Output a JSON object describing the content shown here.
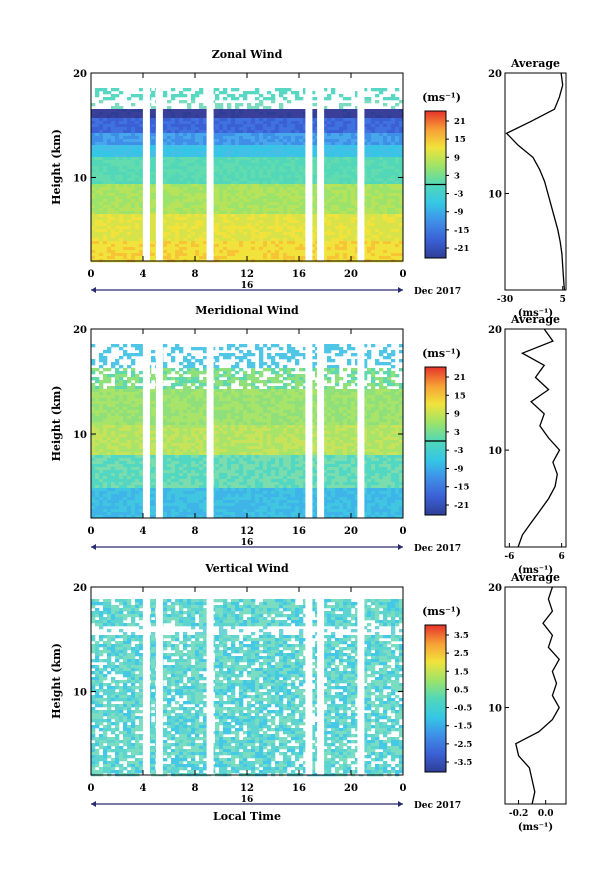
{
  "chart_data": [
    {
      "type": "heatmap",
      "id": "zonal",
      "title": "Zonal Wind",
      "ylabel": "Height (km)",
      "xticks": [
        "0",
        "4",
        "8",
        "12",
        "16",
        "20",
        "0"
      ],
      "yticks": [
        "10",
        "20"
      ],
      "ylim": [
        2,
        20
      ],
      "xlim": [
        0,
        24
      ],
      "date_marker": "16",
      "date_label": "Dec 2017",
      "colorbar": {
        "unit": "(ms⁻¹)",
        "ticks": [
          "21",
          "15",
          "9",
          "3",
          "-3",
          "-9",
          "-15",
          "-21"
        ]
      },
      "gap_hours": [
        4.3,
        5.3,
        9.2,
        16.8,
        17.7,
        20.8
      ],
      "profile": {
        "title": "Average",
        "xticks": [
          "-30",
          "5"
        ],
        "xlim": [
          -30,
          7
        ],
        "xlabel": "(ms⁻¹)",
        "yticks": [
          "10",
          "20"
        ],
        "height_km": [
          2,
          3,
          4,
          5,
          6,
          7,
          8,
          9,
          10,
          11,
          12,
          13,
          14,
          15,
          16,
          17,
          18,
          19,
          20
        ],
        "values": [
          6,
          5.5,
          5,
          4.5,
          3.5,
          2,
          0,
          -2,
          -4,
          -6,
          -9,
          -13,
          -22,
          -29,
          -14,
          0,
          3,
          5,
          4
        ]
      }
    },
    {
      "type": "heatmap",
      "id": "meridional",
      "title": "Meridional Wind",
      "ylabel": "Height (km)",
      "xticks": [
        "0",
        "4",
        "8",
        "12",
        "16",
        "20",
        "0"
      ],
      "yticks": [
        "10",
        "20"
      ],
      "ylim": [
        2,
        20
      ],
      "xlim": [
        0,
        24
      ],
      "date_marker": "16",
      "date_label": "Dec 2017",
      "colorbar": {
        "unit": "(ms⁻¹)",
        "ticks": [
          "21",
          "15",
          "9",
          "3",
          "-3",
          "-9",
          "-15",
          "-21"
        ]
      },
      "gap_hours": [
        4.3,
        5.3,
        9.2,
        16.8,
        17.7,
        20.8
      ],
      "profile": {
        "title": "Average",
        "xticks": [
          "-6",
          "6"
        ],
        "xlim": [
          -7,
          7
        ],
        "xlabel": "(ms⁻¹)",
        "yticks": [
          "10",
          "20"
        ],
        "height_km": [
          2,
          3,
          4,
          5,
          6,
          7,
          8,
          9,
          10,
          11,
          12,
          13,
          14,
          15,
          16,
          17,
          18,
          19,
          20
        ],
        "values": [
          -4,
          -3,
          -1,
          1,
          3,
          4.5,
          5,
          4,
          5.5,
          3,
          1,
          2,
          -1,
          3,
          0,
          2,
          -3,
          4,
          2
        ]
      }
    },
    {
      "type": "heatmap",
      "id": "vertical",
      "title": "Vertical Wind",
      "ylabel": "Height (km)",
      "xlabel": "Local Time",
      "xticks": [
        "0",
        "4",
        "8",
        "12",
        "16",
        "20",
        "0"
      ],
      "yticks": [
        "10",
        "20"
      ],
      "ylim": [
        2,
        20
      ],
      "xlim": [
        0,
        24
      ],
      "date_marker": "16",
      "date_label": "Dec 2017",
      "colorbar": {
        "unit": "(ms⁻¹)",
        "ticks": [
          "3.5",
          "2.5",
          "1.5",
          "0.5",
          "-0.5",
          "-1.5",
          "-2.5",
          "-3.5"
        ]
      },
      "gap_hours": [
        4.3,
        5.3,
        9.2,
        16.8,
        17.7,
        20.8
      ],
      "profile": {
        "title": "Average",
        "xticks": [
          "-0.2",
          "0.0"
        ],
        "xlim": [
          -0.3,
          0.15
        ],
        "xlabel": "(ms⁻¹)",
        "yticks": [
          "10",
          "20"
        ],
        "height_km": [
          2,
          3,
          4,
          5,
          6,
          7,
          8,
          9,
          10,
          11,
          12,
          13,
          14,
          15,
          16,
          17,
          18,
          19,
          20
        ],
        "values": [
          -0.1,
          -0.08,
          -0.1,
          -0.12,
          -0.2,
          -0.22,
          -0.05,
          0.05,
          0.1,
          0.05,
          0.08,
          0.05,
          0.1,
          0.02,
          0.05,
          -0.02,
          0.05,
          0.02,
          0.05
        ]
      }
    }
  ]
}
